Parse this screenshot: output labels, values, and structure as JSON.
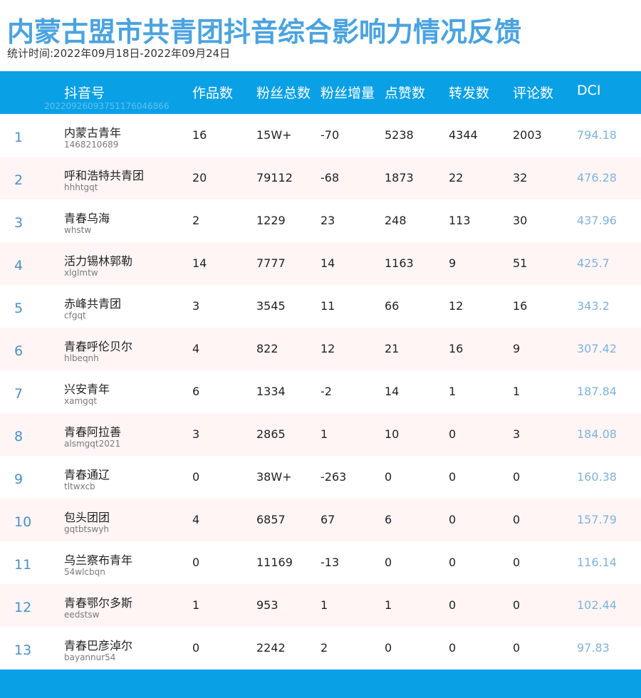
{
  "title": "内蒙古盟市共青团抖音综合影响力情况反馈",
  "period": "统计时间:2022年09月18日-2022年09月24日",
  "header": {
    "account": "抖音号",
    "works": "作品数",
    "fans": "粉丝总数",
    "fans_delta": "粉丝增量",
    "likes": "点赞数",
    "shares": "转发数",
    "comments": "评论数",
    "dci": "DCI",
    "watermark": "20220926093751176046866"
  },
  "rows": [
    {
      "rank": "1",
      "name": "内蒙古青年",
      "account": "1468210689",
      "works": "16",
      "fans": "15W+",
      "fans_delta": "-70",
      "likes": "5238",
      "shares": "4344",
      "comments": "2003",
      "dci": "794.18"
    },
    {
      "rank": "2",
      "name": "呼和浩特共青团",
      "account": "hhhtgqt",
      "works": "20",
      "fans": "79112",
      "fans_delta": "-68",
      "likes": "1873",
      "shares": "22",
      "comments": "32",
      "dci": "476.28"
    },
    {
      "rank": "3",
      "name": "青春乌海",
      "account": "whstw",
      "works": "2",
      "fans": "1229",
      "fans_delta": "23",
      "likes": "248",
      "shares": "113",
      "comments": "30",
      "dci": "437.96"
    },
    {
      "rank": "4",
      "name": "活力锡林郭勒",
      "account": "xlglmtw",
      "works": "14",
      "fans": "7777",
      "fans_delta": "14",
      "likes": "1163",
      "shares": "9",
      "comments": "51",
      "dci": "425.7"
    },
    {
      "rank": "5",
      "name": "赤峰共青团",
      "account": "cfgqt",
      "works": "3",
      "fans": "3545",
      "fans_delta": "11",
      "likes": "66",
      "shares": "12",
      "comments": "16",
      "dci": "343.2"
    },
    {
      "rank": "6",
      "name": "青春呼伦贝尔",
      "account": "hlbeqnh",
      "works": "4",
      "fans": "822",
      "fans_delta": "12",
      "likes": "21",
      "shares": "16",
      "comments": "9",
      "dci": "307.42"
    },
    {
      "rank": "7",
      "name": "兴安青年",
      "account": "xamgqt",
      "works": "6",
      "fans": "1334",
      "fans_delta": "-2",
      "likes": "14",
      "shares": "1",
      "comments": "1",
      "dci": "187.84"
    },
    {
      "rank": "8",
      "name": "青春阿拉善",
      "account": "alsmgqt2021",
      "works": "3",
      "fans": "2865",
      "fans_delta": "1",
      "likes": "10",
      "shares": "0",
      "comments": "3",
      "dci": "184.08"
    },
    {
      "rank": "9",
      "name": "青春通辽",
      "account": "tltwxcb",
      "works": "0",
      "fans": "38W+",
      "fans_delta": "-263",
      "likes": "0",
      "shares": "0",
      "comments": "0",
      "dci": "160.38"
    },
    {
      "rank": "10",
      "name": "包头团团",
      "account": "gqtbtswyh",
      "works": "4",
      "fans": "6857",
      "fans_delta": "67",
      "likes": "6",
      "shares": "0",
      "comments": "0",
      "dci": "157.79"
    },
    {
      "rank": "11",
      "name": "乌兰察布青年",
      "account": "54wlcbqn",
      "works": "0",
      "fans": "11169",
      "fans_delta": "-13",
      "likes": "0",
      "shares": "0",
      "comments": "0",
      "dci": "116.14"
    },
    {
      "rank": "12",
      "name": "青春鄂尔多斯",
      "account": "eedstsw",
      "works": "1",
      "fans": "953",
      "fans_delta": "1",
      "likes": "1",
      "shares": "0",
      "comments": "0",
      "dci": "102.44"
    },
    {
      "rank": "13",
      "name": "青春巴彦淖尔",
      "account": "bayannur54",
      "works": "0",
      "fans": "2242",
      "fans_delta": "2",
      "likes": "0",
      "shares": "0",
      "comments": "0",
      "dci": "97.83"
    }
  ],
  "colors": {
    "accent": "#0aa0e6",
    "title": "#4aa3df",
    "rank": "#4a90c8",
    "dci": "#7fb3dc",
    "even_row": "#fff5f5"
  }
}
